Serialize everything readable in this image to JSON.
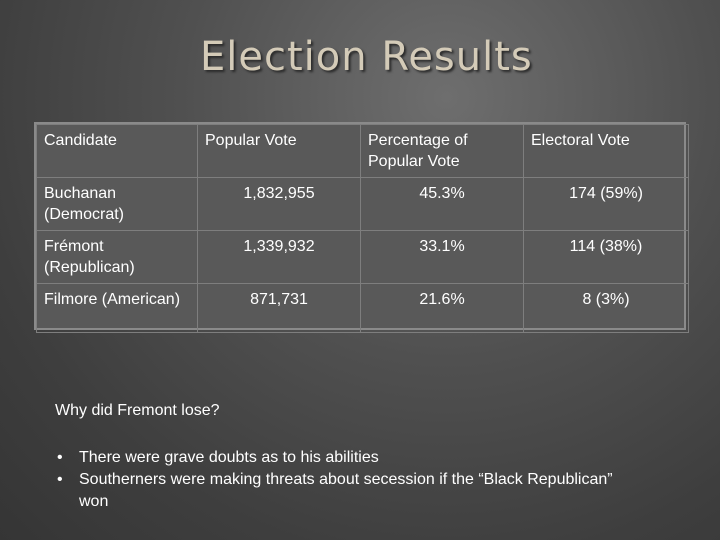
{
  "title": "Election Results",
  "table": {
    "headers": [
      "Candidate",
      "Popular Vote",
      "Percentage of Popular Vote",
      "Electoral Vote"
    ],
    "rows": [
      [
        "Buchanan (Democrat)",
        "1,832,955",
        "45.3%",
        "174 (59%)"
      ],
      [
        "Frémont (Republican)",
        "1,339,932",
        "33.1%",
        "114 (38%)"
      ],
      [
        "Filmore (American)",
        "871,731",
        "21.6%",
        "8 (3%)"
      ]
    ]
  },
  "question": "Why did Fremont lose?",
  "bullets": [
    "There were grave doubts as to his abilities",
    "Southerners were making threats about secession if the “Black Republican” won"
  ],
  "bullet_symbol": "•",
  "colors": {
    "title": "#d4cbb8",
    "table_bg": "#595959",
    "text": "#ffffff"
  }
}
